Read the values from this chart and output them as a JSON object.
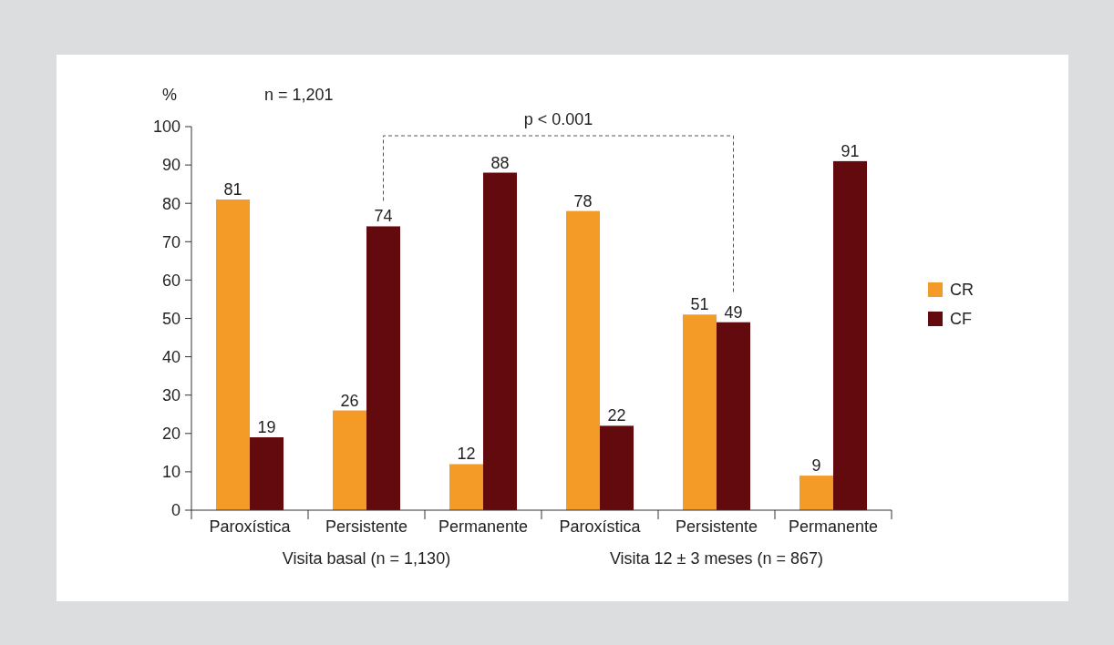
{
  "chart_data": {
    "type": "bar",
    "ylabel": "%",
    "categories": [
      "Paroxística",
      "Persistente",
      "Permanente",
      "Paroxística",
      "Persistente",
      "Permanente"
    ],
    "series": [
      {
        "name": "CR",
        "color": "#f39a27",
        "values": [
          81,
          26,
          12,
          78,
          51,
          9
        ]
      },
      {
        "name": "CF",
        "color": "#630a0e",
        "values": [
          19,
          74,
          88,
          22,
          49,
          91
        ]
      }
    ],
    "ylim": [
      0,
      100
    ],
    "yticks": [
      0,
      10,
      20,
      30,
      40,
      50,
      60,
      70,
      80,
      90,
      100
    ],
    "grid": false,
    "legend": "right",
    "data_labels": true,
    "annotations": [
      "n = 1,201",
      "p < 0.001",
      "Visita basal (n = 1,130)",
      "Visita 12 ± 3 meses (n = 867)"
    ]
  }
}
